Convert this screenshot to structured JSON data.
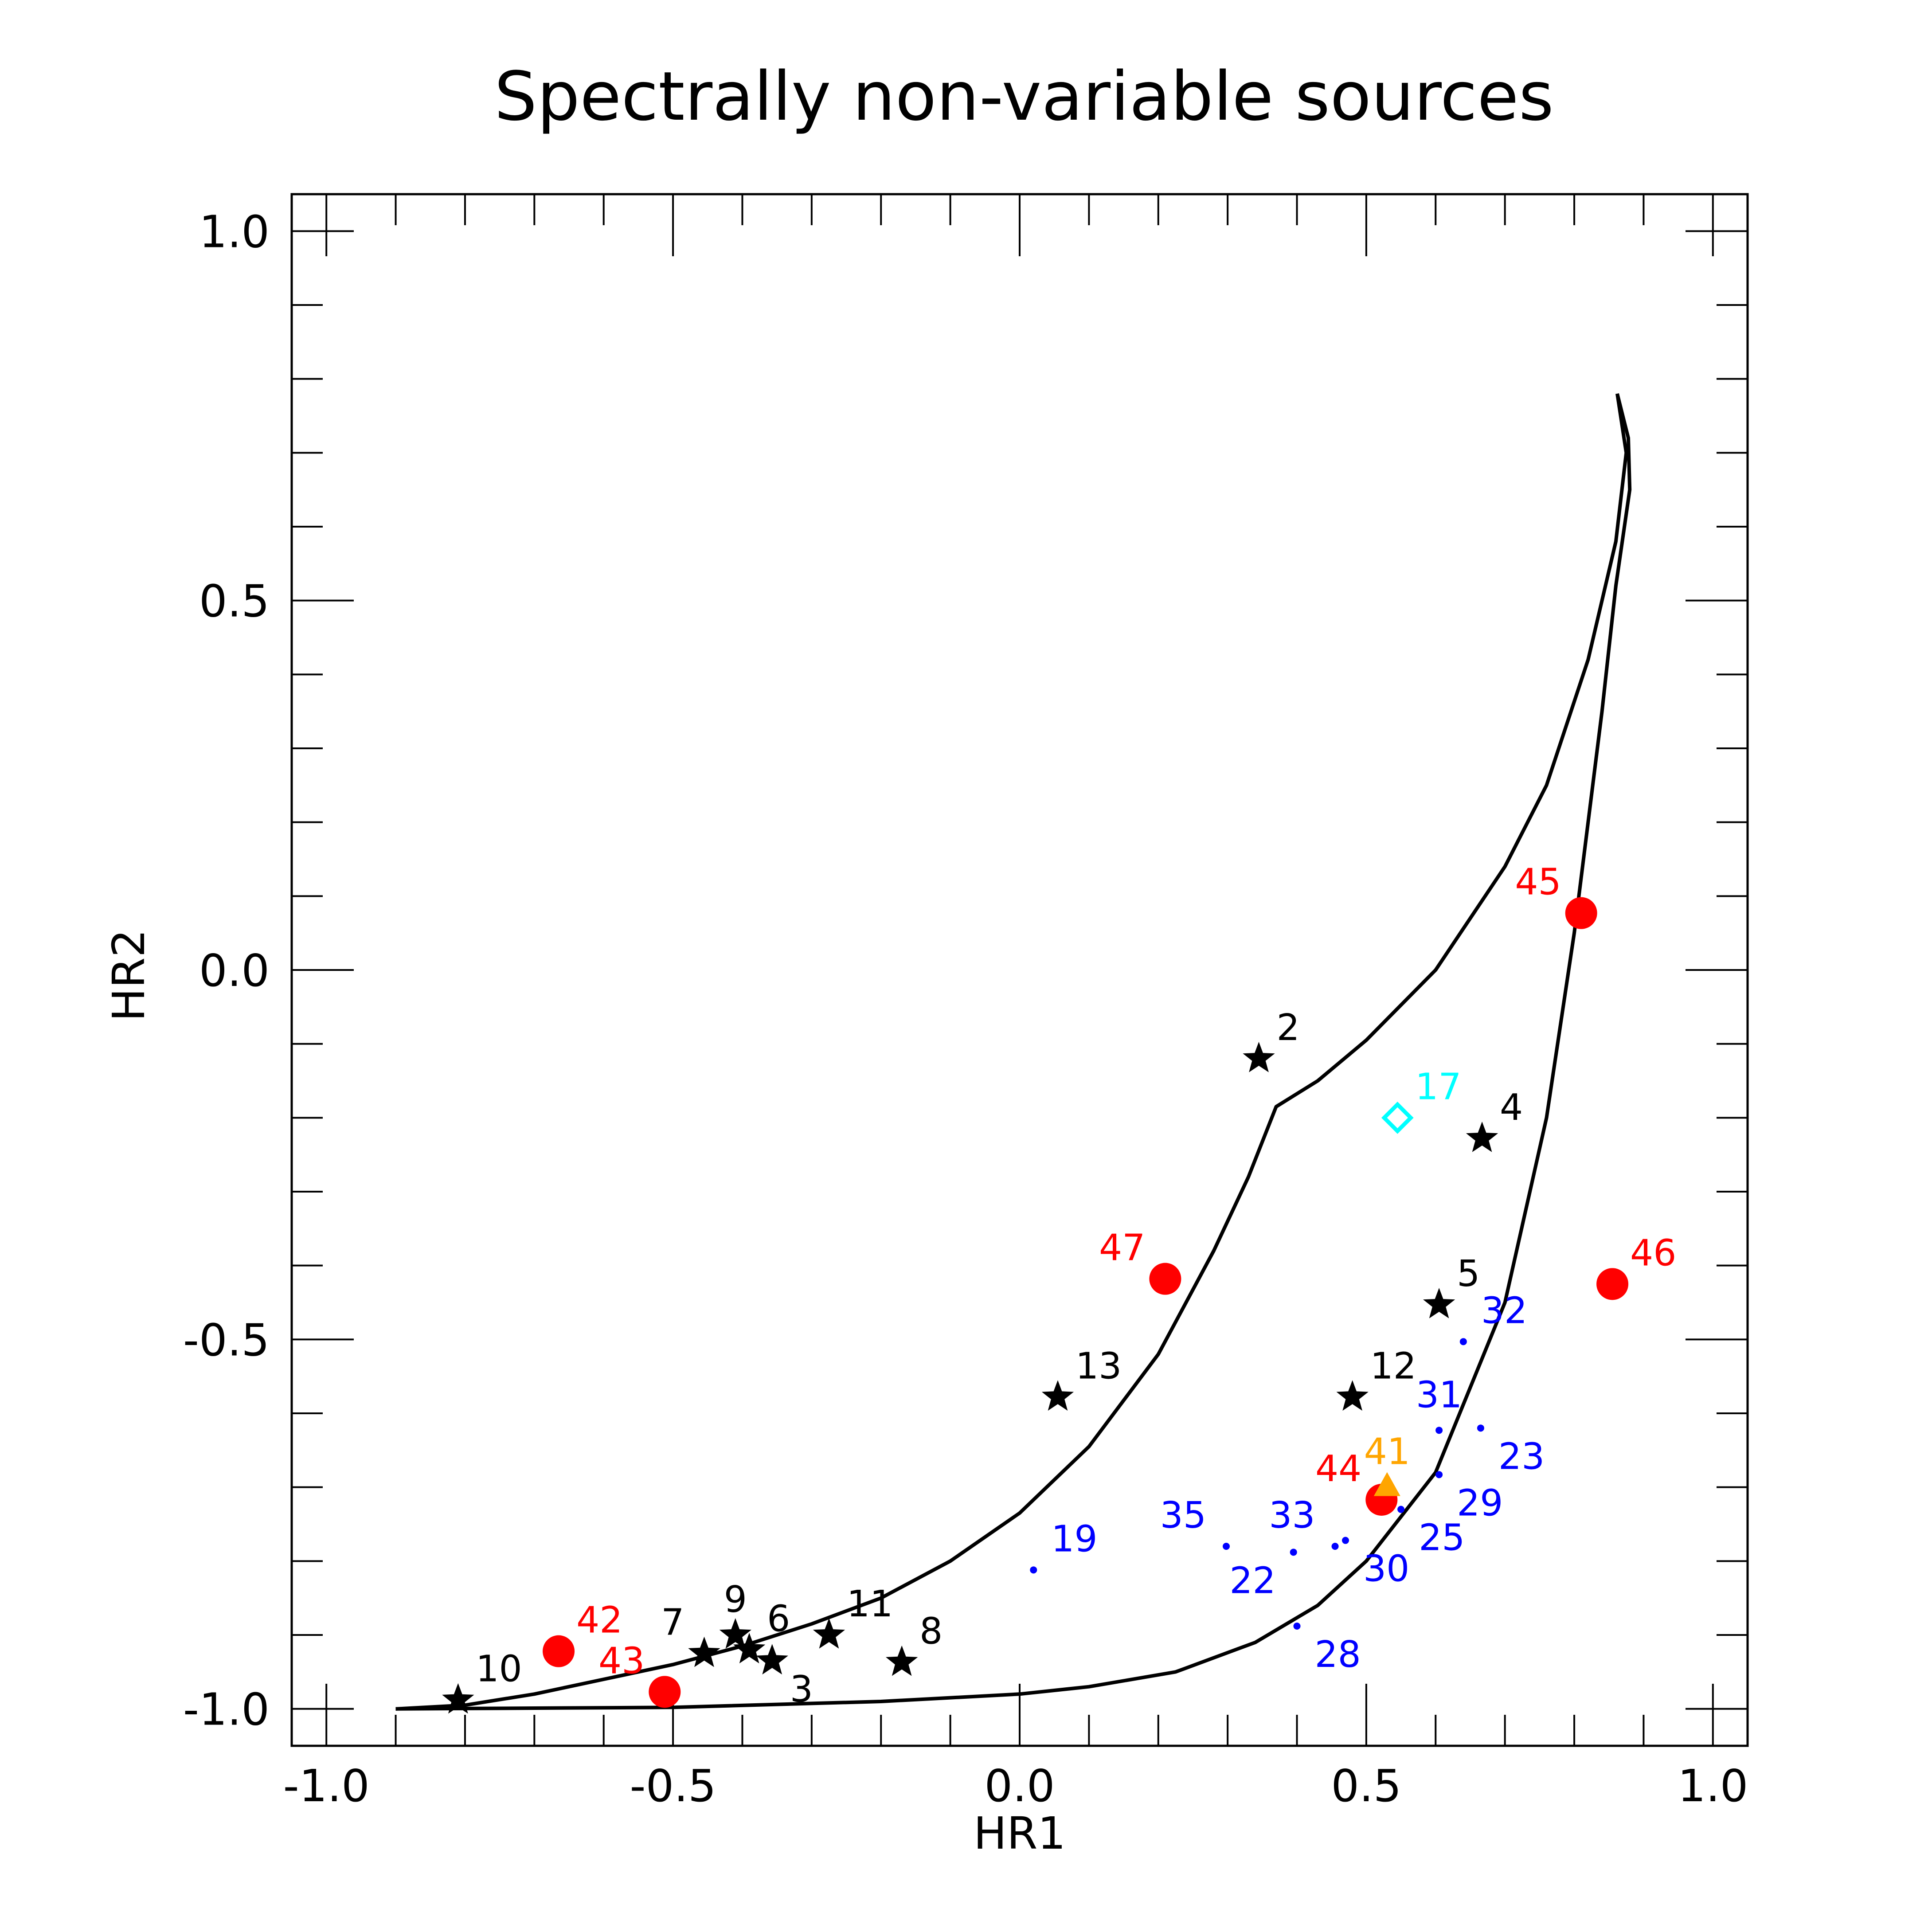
{
  "chart_data": {
    "type": "scatter",
    "title": "Spectrally non-variable sources",
    "xlabel": "HR1",
    "ylabel": "HR2",
    "xlim": [
      -1.05,
      1.05
    ],
    "ylim": [
      -1.05,
      1.05
    ],
    "x_ticks": [
      {
        "value": -1.0,
        "label": "-1.0"
      },
      {
        "value": -0.5,
        "label": "-0.5"
      },
      {
        "value": 0.0,
        "label": "0.0"
      },
      {
        "value": 0.5,
        "label": "0.5"
      },
      {
        "value": 1.0,
        "label": "1.0"
      }
    ],
    "y_ticks": [
      {
        "value": -1.0,
        "label": "-1.0"
      },
      {
        "value": -0.5,
        "label": "-0.5"
      },
      {
        "value": 0.0,
        "label": "0.0"
      },
      {
        "value": 0.5,
        "label": "0.5"
      },
      {
        "value": 1.0,
        "label": "1.0"
      }
    ],
    "x_minor_step": 0.1,
    "y_minor_step": 0.1,
    "curves": [
      {
        "name": "upper-boundary-curve",
        "points": [
          [
            -0.9,
            -1.0
          ],
          [
            -0.8,
            -0.995
          ],
          [
            -0.7,
            -0.98
          ],
          [
            -0.6,
            -0.96
          ],
          [
            -0.5,
            -0.94
          ],
          [
            -0.4,
            -0.915
          ],
          [
            -0.3,
            -0.885
          ],
          [
            -0.2,
            -0.85
          ],
          [
            -0.1,
            -0.8
          ],
          [
            0.0,
            -0.735
          ],
          [
            0.1,
            -0.645
          ],
          [
            0.2,
            -0.52
          ],
          [
            0.28,
            -0.38
          ],
          [
            0.33,
            -0.28
          ],
          [
            0.37,
            -0.185
          ],
          [
            0.43,
            -0.15
          ],
          [
            0.5,
            -0.095
          ],
          [
            0.6,
            0.0
          ],
          [
            0.7,
            0.14
          ],
          [
            0.76,
            0.25
          ],
          [
            0.82,
            0.42
          ],
          [
            0.86,
            0.58
          ],
          [
            0.875,
            0.7
          ],
          [
            0.862,
            0.78
          ]
        ]
      },
      {
        "name": "lower-boundary-curve",
        "points": [
          [
            -0.9,
            -1.0
          ],
          [
            -0.5,
            -0.998
          ],
          [
            -0.2,
            -0.99
          ],
          [
            0.0,
            -0.98
          ],
          [
            0.1,
            -0.97
          ],
          [
            0.225,
            -0.95
          ],
          [
            0.34,
            -0.91
          ],
          [
            0.43,
            -0.86
          ],
          [
            0.5,
            -0.8
          ],
          [
            0.6,
            -0.68
          ],
          [
            0.7,
            -0.45
          ],
          [
            0.76,
            -0.2
          ],
          [
            0.8,
            0.05
          ],
          [
            0.84,
            0.35
          ],
          [
            0.86,
            0.52
          ],
          [
            0.88,
            0.65
          ],
          [
            0.878,
            0.72
          ],
          [
            0.862,
            0.78
          ]
        ]
      }
    ],
    "series": [
      {
        "name": "black-stars",
        "marker": "star",
        "color": "#000000",
        "points": [
          {
            "label": "2",
            "x": 0.345,
            "y": -0.12,
            "label_pos": "upper-right"
          },
          {
            "label": "3",
            "x": -0.357,
            "y": -0.935,
            "label_pos": "lower-right"
          },
          {
            "label": "4",
            "x": 0.667,
            "y": -0.228,
            "label_pos": "upper-right"
          },
          {
            "label": "5",
            "x": 0.605,
            "y": -0.453,
            "label_pos": "upper-right"
          },
          {
            "label": "6",
            "x": -0.39,
            "y": -0.92,
            "label_pos": "upper-right"
          },
          {
            "label": "7",
            "x": -0.455,
            "y": -0.925,
            "label_pos": "upper-left"
          },
          {
            "label": "8",
            "x": -0.17,
            "y": -0.937,
            "label_pos": "upper-right"
          },
          {
            "label": "9",
            "x": -0.41,
            "y": -0.9,
            "label_pos": "above"
          },
          {
            "label": "10",
            "x": -0.81,
            "y": -0.988,
            "label_pos": "upper-right"
          },
          {
            "label": "11",
            "x": -0.275,
            "y": -0.9,
            "label_pos": "upper-right"
          },
          {
            "label": "12",
            "x": 0.48,
            "y": -0.578,
            "label_pos": "upper-right"
          },
          {
            "label": "13",
            "x": 0.055,
            "y": -0.578,
            "label_pos": "upper-right"
          }
        ]
      },
      {
        "name": "red-circles",
        "marker": "circle",
        "color": "#ff0000",
        "points": [
          {
            "label": "42",
            "x": -0.665,
            "y": -0.922,
            "label_pos": "upper-right"
          },
          {
            "label": "43",
            "x": -0.512,
            "y": -0.977,
            "label_pos": "upper-left"
          },
          {
            "label": "44",
            "x": 0.522,
            "y": -0.717,
            "label_pos": "upper-left"
          },
          {
            "label": "45",
            "x": 0.81,
            "y": 0.077,
            "label_pos": "upper-left"
          },
          {
            "label": "46",
            "x": 0.855,
            "y": -0.425,
            "label_pos": "upper-right"
          },
          {
            "label": "47",
            "x": 0.21,
            "y": -0.418,
            "label_pos": "upper-left"
          }
        ]
      },
      {
        "name": "cyan-diamond",
        "marker": "diamond",
        "color": "#00ffff",
        "points": [
          {
            "label": "17",
            "x": 0.545,
            "y": -0.2,
            "label_pos": "upper-right"
          }
        ]
      },
      {
        "name": "orange-triangle",
        "marker": "triangle",
        "color": "#ffa500",
        "points": [
          {
            "label": "41",
            "x": 0.53,
            "y": -0.7,
            "label_pos": "above"
          }
        ]
      },
      {
        "name": "blue-dots",
        "marker": "dot",
        "color": "#0000ff",
        "points": [
          {
            "label": "19",
            "x": 0.02,
            "y": -0.812,
            "label_pos": "upper-right"
          },
          {
            "label": "22",
            "x": 0.395,
            "y": -0.788,
            "label_pos": "lower-left"
          },
          {
            "label": "23",
            "x": 0.665,
            "y": -0.62,
            "label_pos": "lower-right"
          },
          {
            "label": "25",
            "x": 0.55,
            "y": -0.73,
            "label_pos": "lower-right"
          },
          {
            "label": "28",
            "x": 0.4,
            "y": -0.888,
            "label_pos": "lower-right"
          },
          {
            "label": "29",
            "x": 0.605,
            "y": -0.683,
            "label_pos": "lower-right"
          },
          {
            "label": "30",
            "x": 0.47,
            "y": -0.772,
            "label_pos": "lower-right"
          },
          {
            "label": "31",
            "x": 0.605,
            "y": -0.623,
            "label_pos": "above"
          },
          {
            "label": "32",
            "x": 0.64,
            "y": -0.503,
            "label_pos": "upper-right"
          },
          {
            "label": "33",
            "x": 0.455,
            "y": -0.78,
            "label_pos": "upper-left"
          },
          {
            "label": "35",
            "x": 0.298,
            "y": -0.78,
            "label_pos": "upper-left"
          }
        ]
      }
    ]
  }
}
